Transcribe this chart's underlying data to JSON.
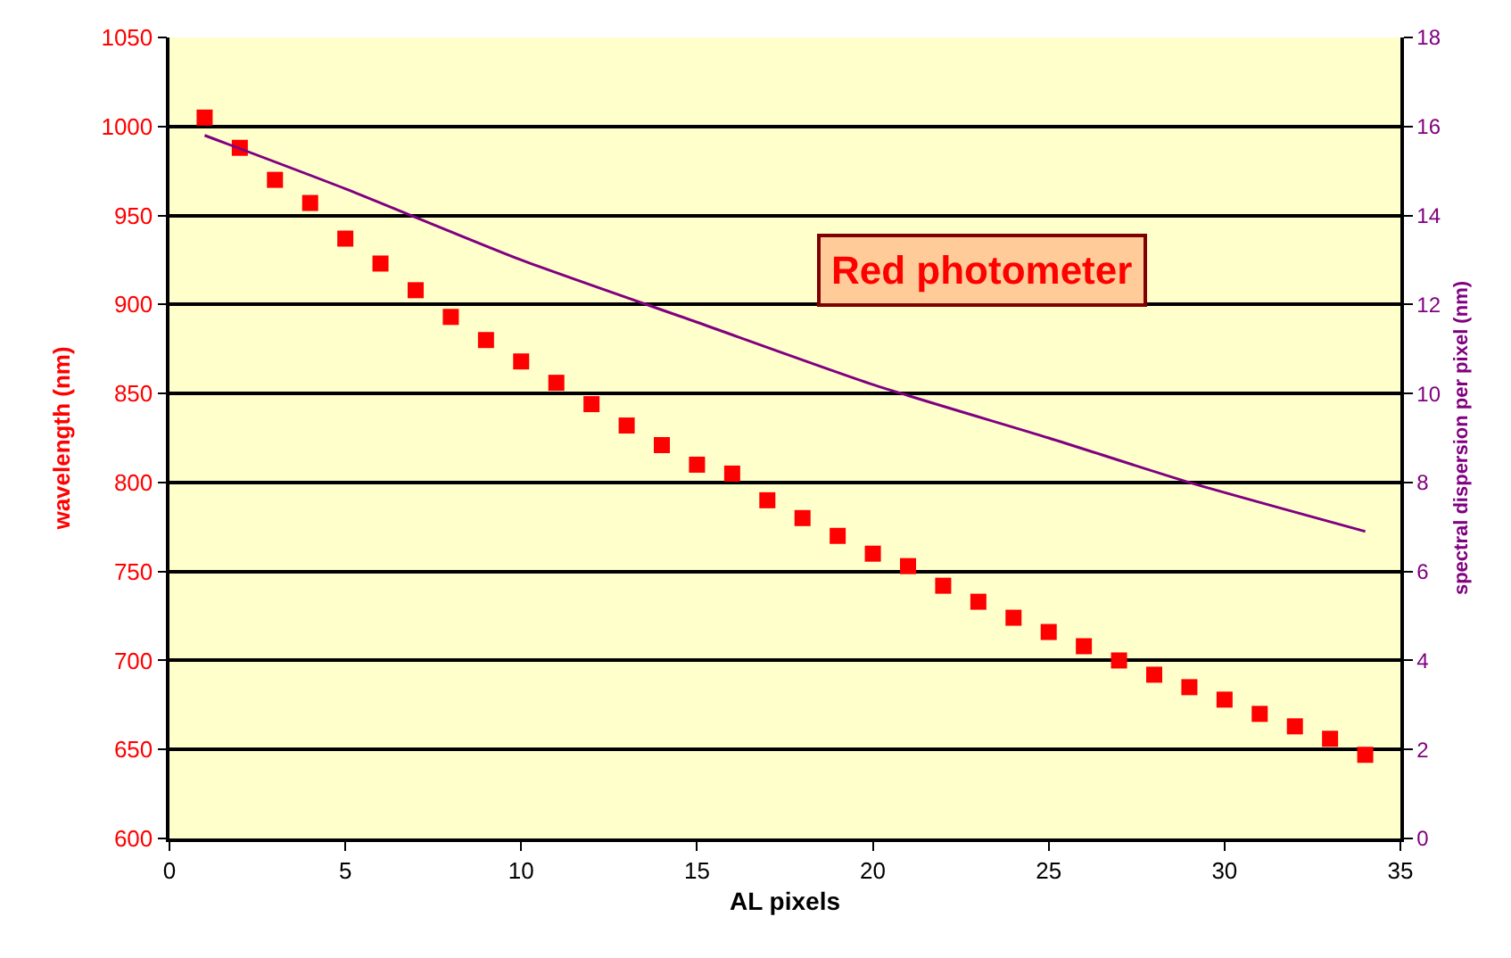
{
  "chart_data": {
    "type": "scatter",
    "xlabel": "AL pixels",
    "ylabel": "wavelength (nm)",
    "y2label": "spectral dispersion per pixel (nm)",
    "annotations": [
      "Red photometer"
    ],
    "xlim": [
      0,
      35
    ],
    "xticks": [
      0,
      5,
      10,
      15,
      20,
      25,
      30,
      35
    ],
    "ylim": [
      600,
      1050
    ],
    "yticks": [
      600,
      650,
      700,
      750,
      800,
      850,
      900,
      950,
      1000,
      1050
    ],
    "y2lim": [
      0,
      18
    ],
    "y2ticks": [
      0,
      2,
      4,
      6,
      8,
      10,
      12,
      14,
      16,
      18
    ],
    "grid": "y",
    "series": [
      {
        "type": "scatter",
        "marker": "square",
        "color": "#ff0000",
        "x": [
          1,
          2,
          3,
          4,
          5,
          6,
          7,
          8,
          9,
          10,
          11,
          12,
          13,
          14,
          15,
          16,
          17,
          18,
          19,
          20,
          21,
          22,
          23,
          24,
          25,
          26,
          27,
          28,
          29,
          30,
          31,
          32,
          33,
          34
        ],
        "values": [
          1005,
          988,
          970,
          957,
          937,
          923,
          908,
          893,
          880,
          868,
          856,
          844,
          832,
          821,
          810,
          805,
          790,
          780,
          770,
          760,
          753,
          742,
          733,
          724,
          716,
          708,
          700,
          692,
          685,
          678,
          670,
          663,
          656,
          647
        ]
      },
      {
        "type": "line",
        "axis": "y2",
        "marker": "none",
        "line_style": "solid",
        "color": "#800080",
        "x": [
          1,
          5,
          10,
          15,
          20,
          25,
          29,
          34
        ],
        "values": [
          15.8,
          14.6,
          13.0,
          11.6,
          10.2,
          9.0,
          8.0,
          6.9
        ]
      }
    ]
  }
}
